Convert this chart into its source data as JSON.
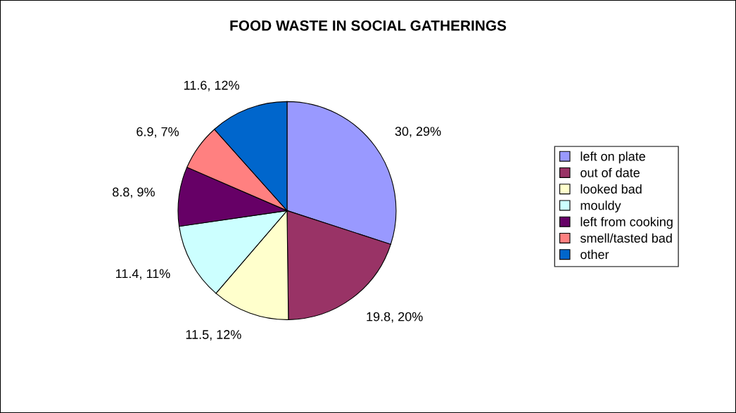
{
  "chart_data": {
    "type": "pie",
    "title": "FOOD WASTE IN SOCIAL GATHERINGS",
    "categories": [
      "left on plate",
      "out of date",
      "looked bad",
      "mouldy",
      "left from cooking",
      "smell/tasted bad",
      "other"
    ],
    "values": [
      30,
      19.8,
      11.5,
      11.4,
      8.8,
      6.9,
      11.6
    ],
    "value_labels": [
      "30, 29%",
      "19.8, 20%",
      "11.5, 12%",
      "11.4, 11%",
      "8.8, 9%",
      "6.9, 7%",
      "11.6, 12%"
    ],
    "colors": [
      "#9999ff",
      "#993366",
      "#ffffcc",
      "#ccffff",
      "#660066",
      "#ff8080",
      "#0066cc"
    ],
    "legend": "right"
  }
}
